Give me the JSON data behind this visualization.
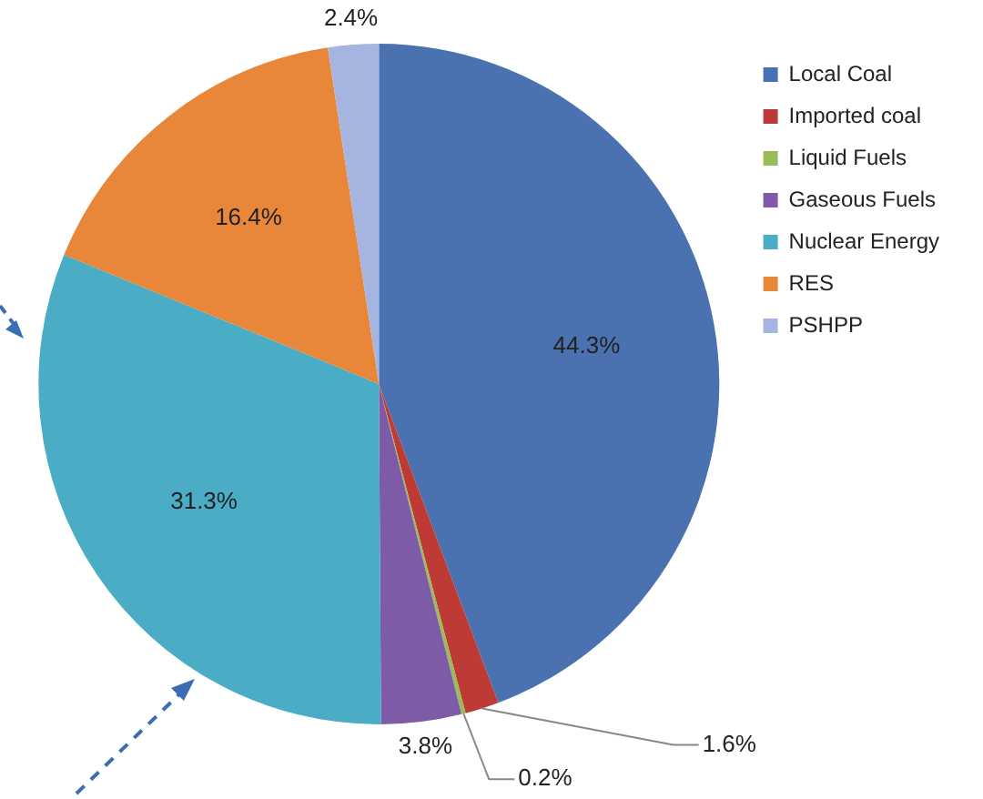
{
  "chart_data": {
    "type": "pie",
    "categories": [
      "Local Coal",
      "Imported coal",
      "Liquid Fuels",
      "Gaseous Fuels",
      "Nuclear Energy",
      "RES",
      "PSHPP"
    ],
    "values": [
      44.3,
      1.6,
      0.2,
      3.8,
      31.3,
      16.4,
      2.4
    ],
    "colors": [
      "#4a72b0",
      "#be3a34",
      "#9bbb59",
      "#7d5ba6",
      "#4bacc6",
      "#e8863a",
      "#a6b5e0"
    ],
    "value_labels": [
      "44.3%",
      "1.6%",
      "0.2%",
      "3.8%",
      "31.3%",
      "16.4%",
      "2.4%"
    ],
    "legend": "top right"
  }
}
